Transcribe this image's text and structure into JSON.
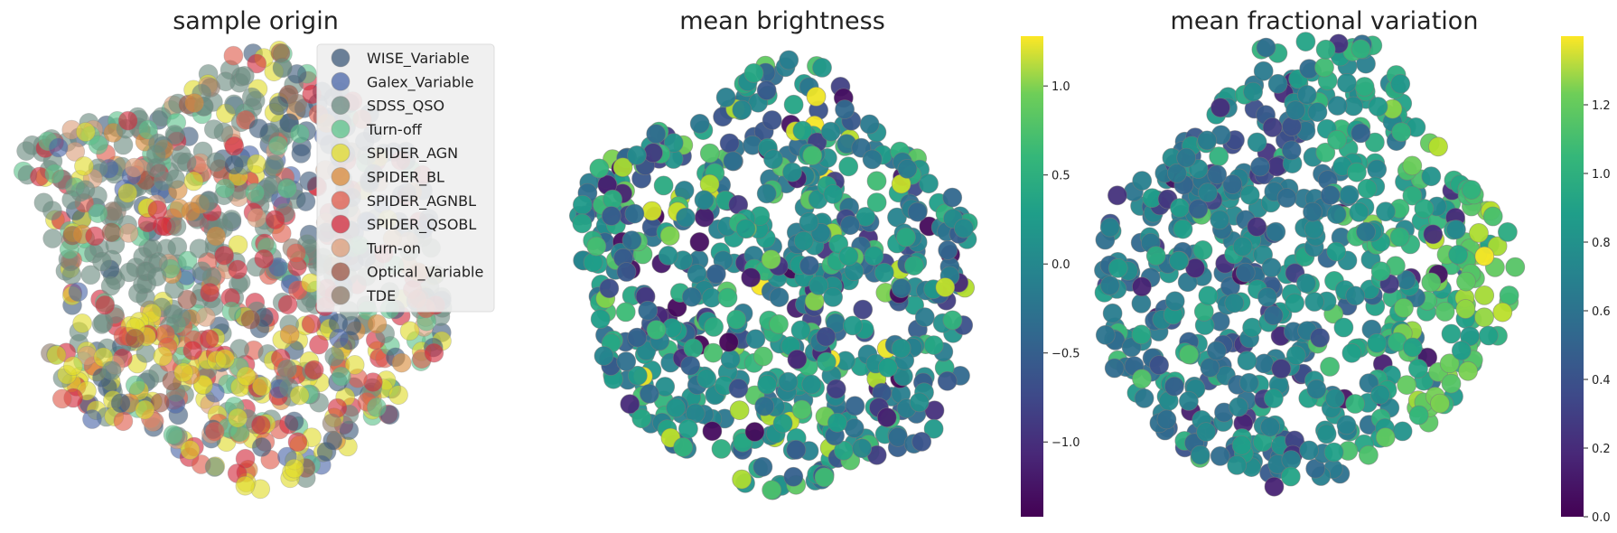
{
  "chart_data": [
    {
      "type": "scatter",
      "title": "sample origin",
      "color_by": "category",
      "legend_position": "top-right",
      "legend": [
        {
          "name": "WISE_Variable",
          "color": "#3e5a7a"
        },
        {
          "name": "Galex_Variable",
          "color": "#4a66a8"
        },
        {
          "name": "SDSS_QSO",
          "color": "#6b8a80"
        },
        {
          "name": "Turn-off",
          "color": "#5cc28a"
        },
        {
          "name": "SPIDER_AGN",
          "color": "#e1dc2c"
        },
        {
          "name": "SPIDER_BL",
          "color": "#d98a3a"
        },
        {
          "name": "SPIDER_AGNBL",
          "color": "#df5a4a"
        },
        {
          "name": "SPIDER_QSOBL",
          "color": "#d22a3c"
        },
        {
          "name": "Turn-on",
          "color": "#dc9e7a"
        },
        {
          "name": "Optical_Variable",
          "color": "#9a5444"
        },
        {
          "name": "TDE",
          "color": "#8e7b6a"
        }
      ],
      "point_count": 900,
      "grid": false,
      "axes_visible": false
    },
    {
      "type": "scatter",
      "title": "mean brightness",
      "color_by": "value",
      "colormap": "viridis",
      "colorbar": {
        "min": -1.42,
        "max": 1.28,
        "ticks": [
          "1.0",
          "0.5",
          "0.0",
          "−0.5",
          "−1.0"
        ],
        "tick_values": [
          1.0,
          0.5,
          0.0,
          -0.5,
          -1.0
        ]
      },
      "point_count": 650,
      "grid": false,
      "axes_visible": false
    },
    {
      "type": "scatter",
      "title": "mean fractional variation",
      "color_by": "value",
      "colormap": "viridis",
      "colorbar": {
        "min": 0.0,
        "max": 1.4,
        "ticks": [
          "1.2",
          "1.0",
          "0.8",
          "0.6",
          "0.4",
          "0.2",
          "0.0"
        ],
        "tick_values": [
          1.2,
          1.0,
          0.8,
          0.6,
          0.4,
          0.2,
          0.0
        ]
      },
      "point_count": 650,
      "grid": false,
      "axes_visible": false
    }
  ]
}
